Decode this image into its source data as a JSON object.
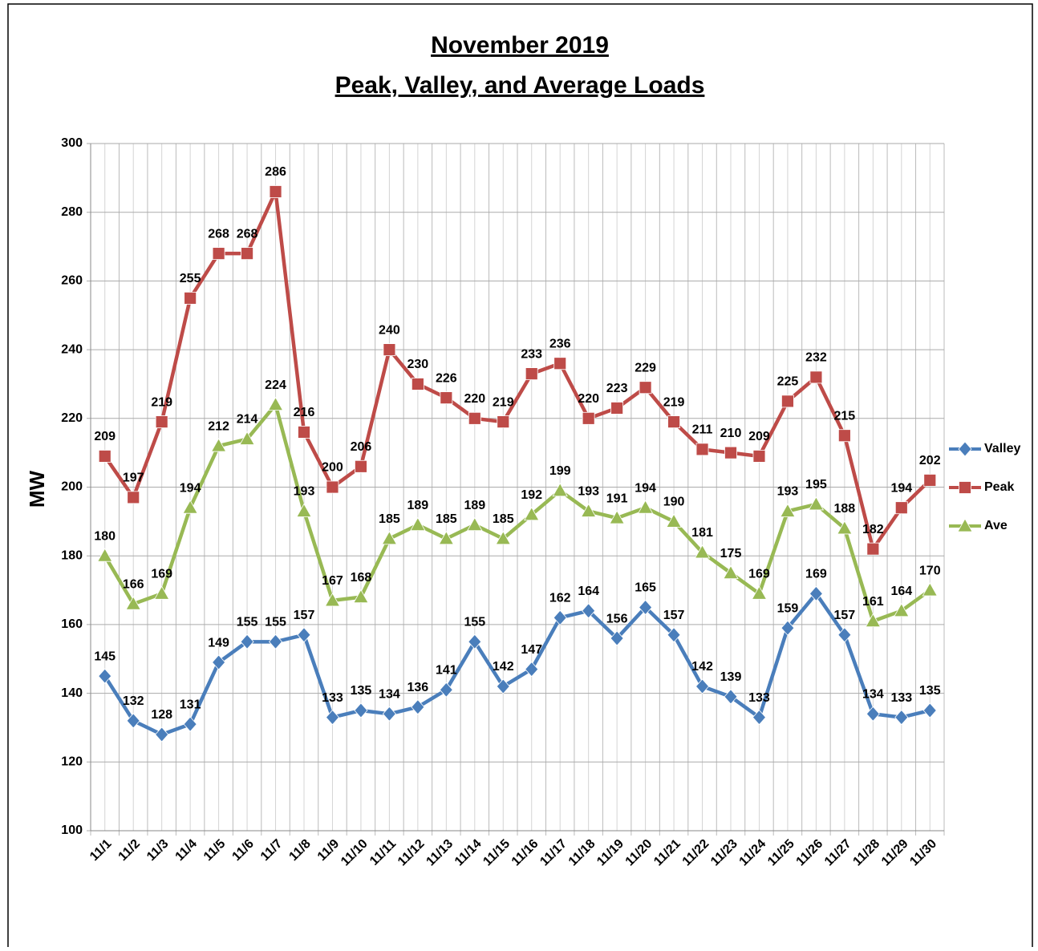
{
  "chart_data": {
    "type": "line",
    "title": "November 2019",
    "subtitle": "Peak, Valley, and Average Loads",
    "y_label": "MW",
    "categories": [
      "11/1",
      "11/2",
      "11/3",
      "11/4",
      "11/5",
      "11/6",
      "11/7",
      "11/8",
      "11/9",
      "11/10",
      "11/11",
      "11/12",
      "11/13",
      "11/14",
      "11/15",
      "11/16",
      "11/17",
      "11/18",
      "11/19",
      "11/20",
      "11/21",
      "11/22",
      "11/23",
      "11/24",
      "11/25",
      "11/26",
      "11/27",
      "11/28",
      "11/29",
      "11/30"
    ],
    "series": [
      {
        "name": "Valley",
        "color": "#4a7ebb",
        "marker": "diamond",
        "values": [
          145,
          132,
          128,
          131,
          149,
          155,
          155,
          157,
          133,
          135,
          134,
          136,
          141,
          155,
          142,
          147,
          162,
          164,
          156,
          165,
          157,
          142,
          139,
          133,
          159,
          169,
          157,
          134,
          133,
          135
        ]
      },
      {
        "name": "Peak",
        "color": "#be4b48",
        "marker": "square",
        "values": [
          209,
          197,
          219,
          255,
          268,
          268,
          286,
          216,
          200,
          206,
          240,
          230,
          226,
          220,
          219,
          233,
          236,
          220,
          223,
          229,
          219,
          211,
          210,
          209,
          225,
          232,
          215,
          182,
          194,
          202
        ]
      },
      {
        "name": "Ave",
        "color": "#98b954",
        "marker": "triangle",
        "values": [
          180,
          166,
          169,
          194,
          212,
          214,
          224,
          193,
          167,
          168,
          185,
          189,
          185,
          189,
          185,
          192,
          199,
          193,
          191,
          194,
          190,
          181,
          175,
          169,
          193,
          195,
          188,
          161,
          164,
          170
        ]
      }
    ],
    "ylim": [
      100,
      300
    ],
    "yticks": [
      100,
      120,
      140,
      160,
      180,
      200,
      220,
      240,
      260,
      280,
      300
    ],
    "grid": true,
    "legend": "right"
  }
}
